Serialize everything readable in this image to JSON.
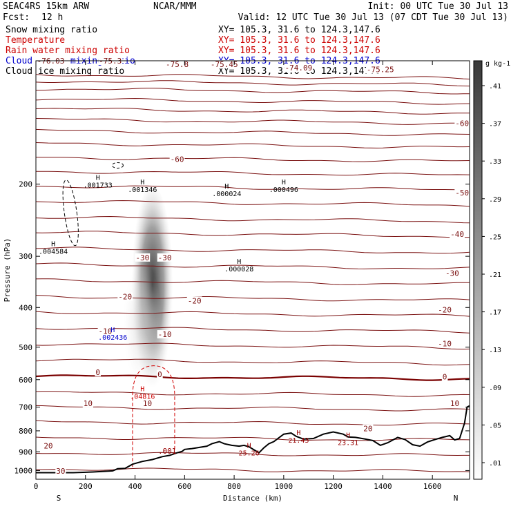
{
  "header": {
    "model": "SEAC4RS 15km ARW",
    "center": "NCAR/MMM",
    "init": "Init: 00 UTC Tue 30 Jul 13",
    "fcst_label": "Fcst:",
    "fcst_value": "12 h",
    "valid": "Valid: 12 UTC Tue 30 Jul 13 (07 CDT Tue 30 Jul 13)"
  },
  "fields": [
    {
      "name": "Snow mixing ratio",
      "xy": "XY= 105.3, 31.6 to 124.3,147.6",
      "color": "#000000"
    },
    {
      "name": "Temperature",
      "xy": "XY= 105.3, 31.6 to 124.3,147.6",
      "color": "#cc0000"
    },
    {
      "name": "Rain water mixing ratio",
      "xy": "XY= 105.3, 31.6 to 124.3,147.6",
      "color": "#cc0000"
    },
    {
      "name": "Cloud water mixing ratio",
      "xy": "XY= 105.3, 31.6 to 124.3,147.6",
      "color": "#0000cc"
    },
    {
      "name": "Cloud ice mixing ratio",
      "xy": "XY= 105.3, 31.6 to 124.3,147.6",
      "color": "#000000"
    }
  ],
  "chart_data": {
    "type": "contour cross-section",
    "xlabel": "Distance (km)",
    "ylabel": "Pressure (hPa)",
    "xlim": [
      0,
      1750
    ],
    "ylim": [
      1050,
      100
    ],
    "x_ticks": [
      0,
      200,
      400,
      600,
      800,
      1000,
      1200,
      1400,
      1600
    ],
    "y_ticks": [
      200,
      300,
      400,
      500,
      600,
      700,
      800,
      900,
      1000
    ],
    "left_end_label": "S",
    "right_end_label": "N",
    "colorbar": {
      "unit": "g kg-1",
      "ticks": [
        ".01",
        ".05",
        ".09",
        ".13",
        ".17",
        ".21",
        ".25",
        ".29",
        ".33",
        ".37",
        ".41"
      ]
    },
    "temperature_labels": [
      {
        "text": "-76.03",
        "x": 60,
        "p": 100
      },
      {
        "text": "-75.3",
        "x": 300,
        "p": 100
      },
      {
        "text": "-75.8",
        "x": 570,
        "p": 102
      },
      {
        "text": "-75.45",
        "x": 760,
        "p": 102
      },
      {
        "text": "-74.09",
        "x": 1060,
        "p": 104
      },
      {
        "text": "-75.25",
        "x": 1390,
        "p": 105
      },
      {
        "text": "-60",
        "x": 570,
        "p": 174
      },
      {
        "text": "-60",
        "x": 1720,
        "p": 142
      },
      {
        "text": "-50",
        "x": 1720,
        "p": 210
      },
      {
        "text": "-40",
        "x": 1700,
        "p": 265
      },
      {
        "text": "-30",
        "x": 430,
        "p": 302
      },
      {
        "text": "-30",
        "x": 520,
        "p": 302
      },
      {
        "text": "-30",
        "x": 1680,
        "p": 330
      },
      {
        "text": "-20",
        "x": 360,
        "p": 376
      },
      {
        "text": "-20",
        "x": 640,
        "p": 385
      },
      {
        "text": "-20",
        "x": 1650,
        "p": 405
      },
      {
        "text": "-10",
        "x": 280,
        "p": 457
      },
      {
        "text": "-10",
        "x": 520,
        "p": 465
      },
      {
        "text": "-10",
        "x": 1650,
        "p": 490
      },
      {
        "text": "0",
        "x": 250,
        "p": 575
      },
      {
        "text": "0",
        "x": 500,
        "p": 582
      },
      {
        "text": "0",
        "x": 1650,
        "p": 590
      },
      {
        "text": "10",
        "x": 210,
        "p": 685
      },
      {
        "text": "10",
        "x": 450,
        "p": 685
      },
      {
        "text": "10",
        "x": 1690,
        "p": 685
      },
      {
        "text": "20",
        "x": 50,
        "p": 870
      },
      {
        "text": "20",
        "x": 1340,
        "p": 790
      },
      {
        "text": "30",
        "x": 100,
        "p": 1002
      }
    ],
    "highs": [
      {
        "label": "H",
        "value": ".001733",
        "x": 250,
        "p": 200,
        "color": "#000000"
      },
      {
        "label": "H",
        "value": ".001346",
        "x": 430,
        "p": 205,
        "color": "#000000"
      },
      {
        "label": "H",
        "value": ".000024",
        "x": 770,
        "p": 210,
        "color": "#000000"
      },
      {
        "label": "H",
        "value": ".000496",
        "x": 1000,
        "p": 205,
        "color": "#000000"
      },
      {
        "label": "H",
        "value": ".004584",
        "x": 70,
        "p": 290,
        "color": "#000000"
      },
      {
        "label": "H",
        "value": ".000028",
        "x": 820,
        "p": 320,
        "color": "#000000"
      },
      {
        "label": "H",
        "value": ".002436",
        "x": 310,
        "p": 470,
        "color": "#0000cc"
      },
      {
        "label": "H",
        "value": ".04816",
        "x": 430,
        "p": 655,
        "color": "#cc0000"
      },
      {
        "label": "H",
        "value": "25.26",
        "x": 860,
        "p": 900,
        "color": "#990000"
      },
      {
        "label": "H",
        "value": "21.43",
        "x": 1060,
        "p": 838,
        "color": "#990000"
      },
      {
        "label": "H",
        "value": "23.31",
        "x": 1260,
        "p": 850,
        "color": "#990000"
      }
    ],
    "rain_contour_label": {
      "text": ".001",
      "x": 530,
      "p": 895
    },
    "terrain_pressure_hPa": [
      [
        0,
        1012
      ],
      [
        50,
        1012
      ],
      [
        150,
        1012
      ],
      [
        230,
        1008
      ],
      [
        310,
        1002
      ],
      [
        330,
        990
      ],
      [
        360,
        988
      ],
      [
        390,
        965
      ],
      [
        430,
        950
      ],
      [
        470,
        940
      ],
      [
        510,
        925
      ],
      [
        540,
        918
      ],
      [
        570,
        905
      ],
      [
        590,
        898
      ],
      [
        600,
        888
      ],
      [
        630,
        884
      ],
      [
        660,
        878
      ],
      [
        690,
        872
      ],
      [
        710,
        860
      ],
      [
        740,
        850
      ],
      [
        760,
        860
      ],
      [
        790,
        868
      ],
      [
        820,
        872
      ],
      [
        840,
        868
      ],
      [
        860,
        875
      ],
      [
        880,
        890
      ],
      [
        900,
        905
      ],
      [
        920,
        880
      ],
      [
        940,
        860
      ],
      [
        960,
        850
      ],
      [
        1000,
        815
      ],
      [
        1030,
        810
      ],
      [
        1050,
        825
      ],
      [
        1080,
        838
      ],
      [
        1120,
        835
      ],
      [
        1160,
        815
      ],
      [
        1200,
        805
      ],
      [
        1240,
        815
      ],
      [
        1260,
        828
      ],
      [
        1290,
        830
      ],
      [
        1330,
        838
      ],
      [
        1360,
        845
      ],
      [
        1390,
        868
      ],
      [
        1420,
        855
      ],
      [
        1460,
        830
      ],
      [
        1490,
        840
      ],
      [
        1520,
        865
      ],
      [
        1550,
        872
      ],
      [
        1580,
        852
      ],
      [
        1610,
        840
      ],
      [
        1640,
        830
      ],
      [
        1670,
        822
      ],
      [
        1690,
        842
      ],
      [
        1710,
        835
      ],
      [
        1730,
        765
      ],
      [
        1740,
        700
      ],
      [
        1750,
        695
      ]
    ]
  }
}
